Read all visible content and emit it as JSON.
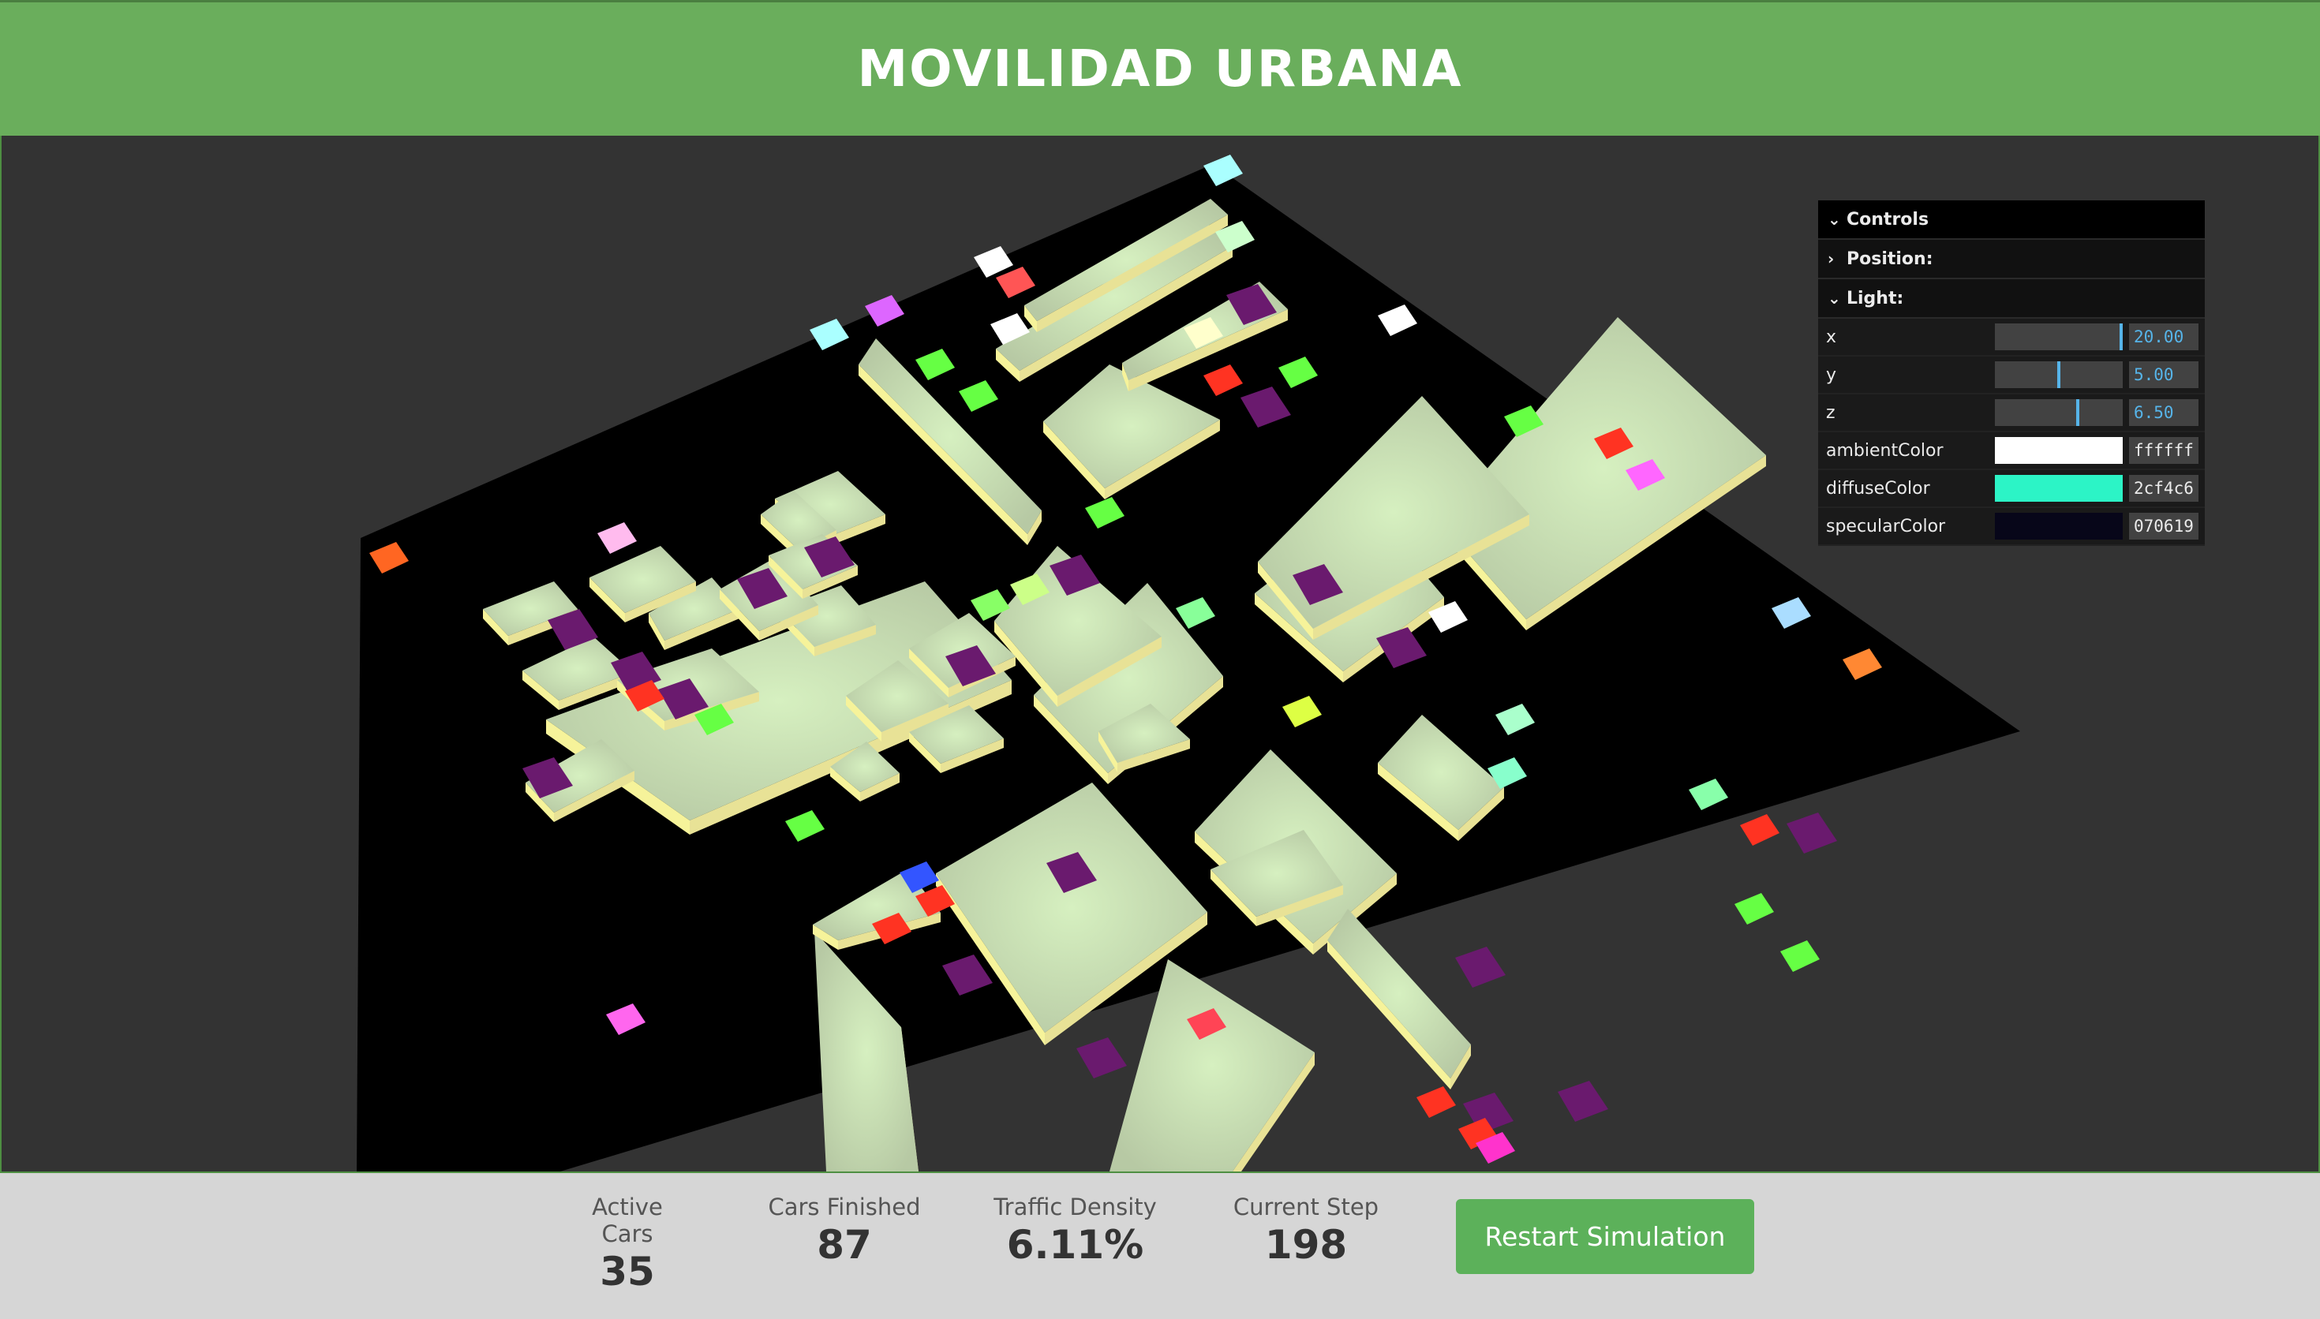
{
  "header": {
    "title": "MOVILIDAD URBANA"
  },
  "gui": {
    "title": "Controls",
    "folders": {
      "position": "Position:",
      "light": "Light:"
    },
    "light": {
      "x": {
        "label": "x",
        "value": "20.00",
        "fraction": 1.0
      },
      "y": {
        "label": "y",
        "value": "5.00",
        "fraction": 0.5
      },
      "z": {
        "label": "z",
        "value": "6.50",
        "fraction": 0.65
      },
      "ambientColor": {
        "label": "ambientColor",
        "hex": "ffffff",
        "color": "#ffffff"
      },
      "diffuseColor": {
        "label": "diffuseColor",
        "hex": "2cf4c6",
        "color": "#2cf4c6"
      },
      "specularColor": {
        "label": "specularColor",
        "hex": "070619",
        "color": "#070619"
      }
    }
  },
  "stats": {
    "active_cars": {
      "label": "Active Cars",
      "value": "35"
    },
    "cars_finished": {
      "label": "Cars Finished",
      "value": "87"
    },
    "traffic_density": {
      "label": "Traffic Density",
      "value": "6.11%"
    },
    "current_step": {
      "label": "Current Step",
      "value": "198"
    }
  },
  "restart_label": "Restart Simulation",
  "scene_colors": {
    "background": "#333333",
    "ground": "#000000",
    "building_top": "#c9dcb4",
    "building_side": "#f6f39a",
    "purple": "#6a1a6e",
    "green": "#5ef04a",
    "red": "#ee3322"
  }
}
